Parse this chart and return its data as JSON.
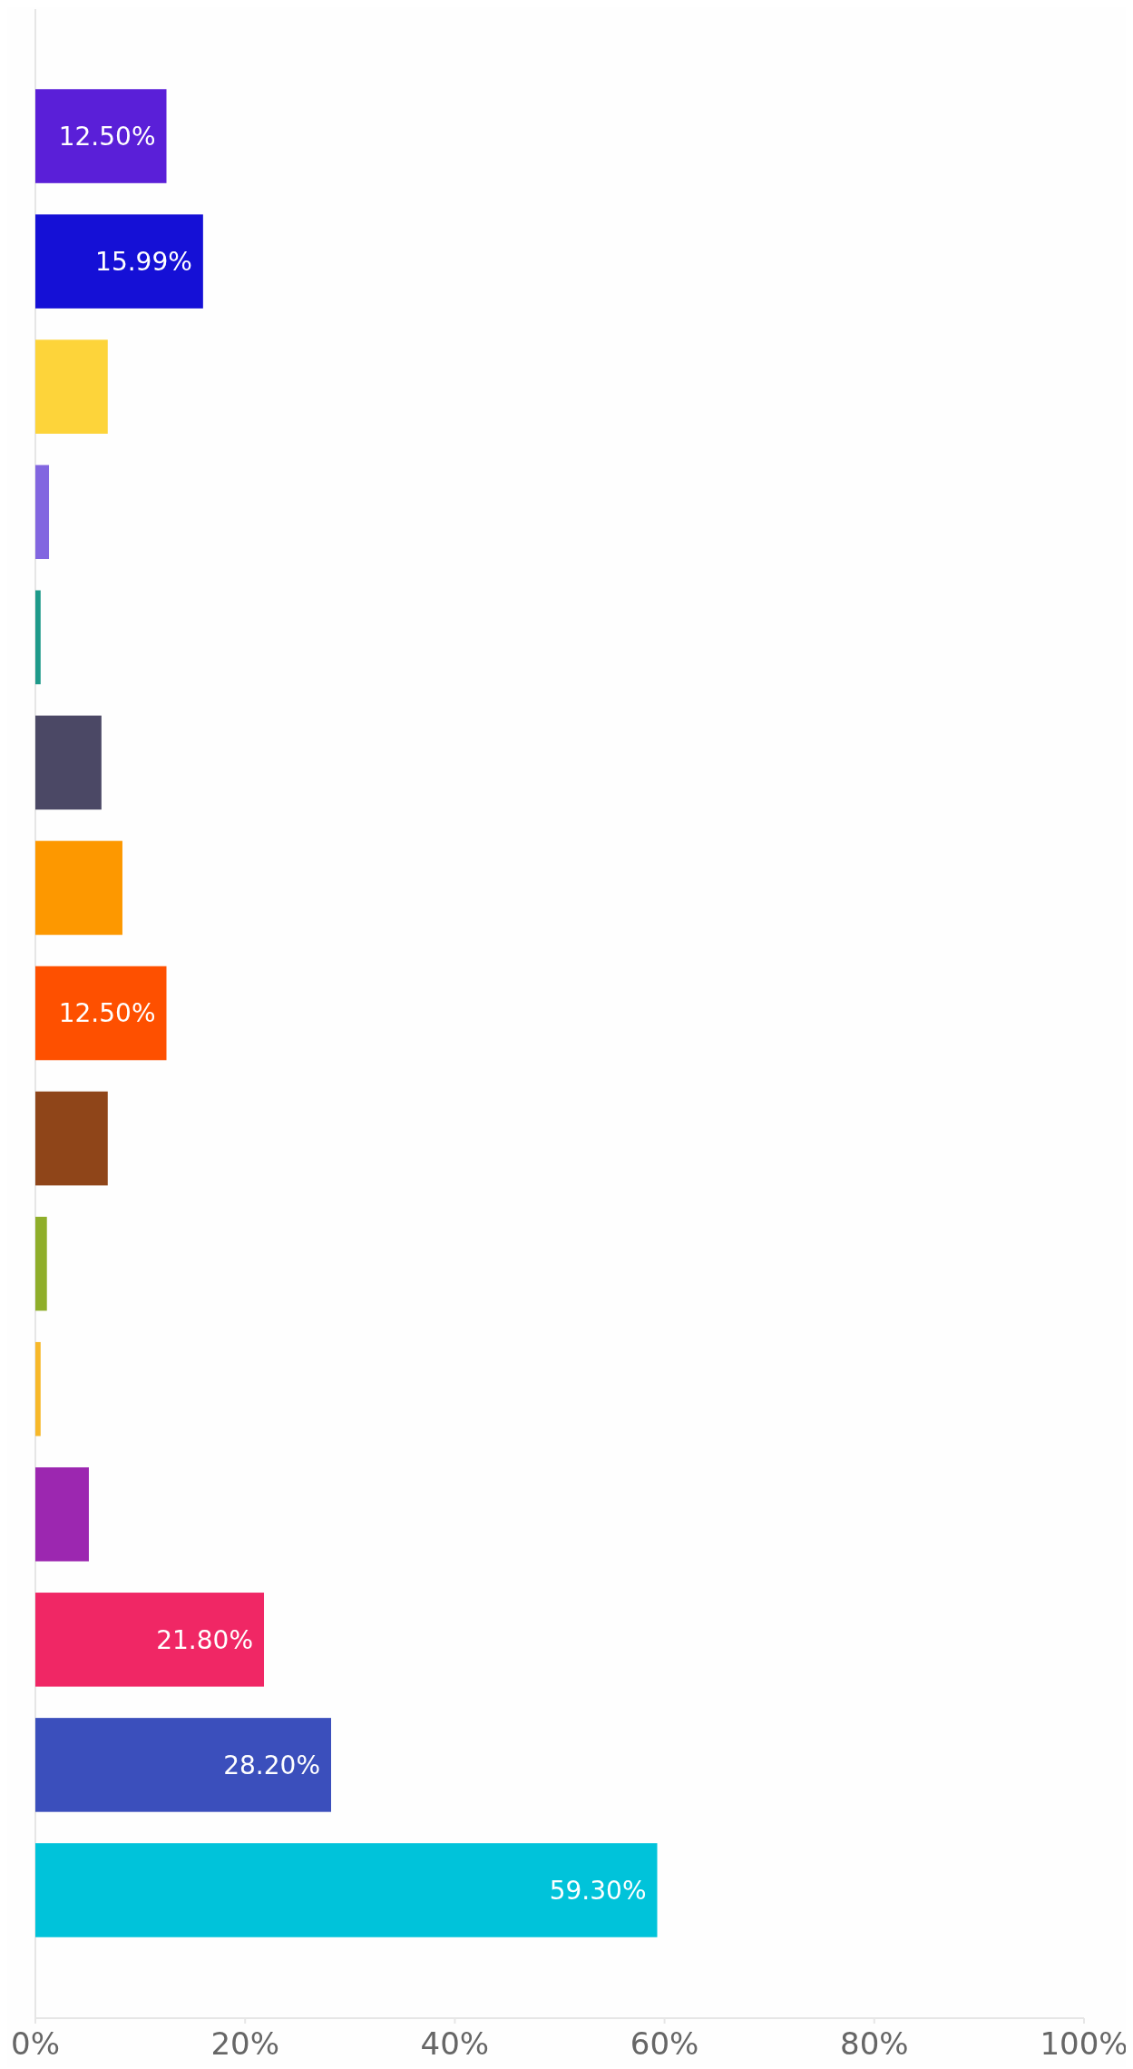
{
  "chart_data": {
    "type": "bar",
    "orientation": "horizontal",
    "categories": [
      null,
      null,
      null,
      null,
      null,
      null,
      null,
      null,
      null,
      null,
      null,
      null,
      null,
      null,
      null
    ],
    "values": [
      12.5,
      15.99,
      6.9,
      1.3,
      0.5,
      6.3,
      8.3,
      12.5,
      6.9,
      1.1,
      0.5,
      5.1,
      21.8,
      28.2,
      59.3
    ],
    "value_labels": [
      "12.50%",
      "15.99%",
      null,
      null,
      null,
      null,
      null,
      "12.50%",
      null,
      null,
      null,
      null,
      "21.80%",
      "28.20%",
      "59.30%"
    ],
    "colors": [
      "#5a1fd8",
      "#1510d6",
      "#fdd43a",
      "#8266e0",
      "#1e9a8a",
      "#4b4865",
      "#fd9800",
      "#fe5000",
      "#8f4519",
      "#8fae2a",
      "#f7b82a",
      "#9c27b0",
      "#f02765",
      "#3b4fbc",
      "#00c3da"
    ],
    "xlim": [
      0,
      100
    ],
    "xticks": [
      {
        "value": 0,
        "label": "0%"
      },
      {
        "value": 20,
        "label": "20%"
      },
      {
        "value": 40,
        "label": "40%"
      },
      {
        "value": 60,
        "label": "60%"
      },
      {
        "value": 80,
        "label": "80%"
      },
      {
        "value": 100,
        "label": "100%"
      }
    ],
    "grid": false
  }
}
